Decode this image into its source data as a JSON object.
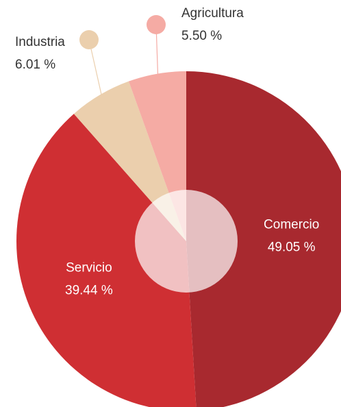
{
  "chart_data": {
    "type": "pie",
    "categories": [
      "Comercio",
      "Servicio",
      "Industria",
      "Agricultura"
    ],
    "values": [
      49.05,
      39.44,
      6.01,
      5.5
    ],
    "value_labels": [
      "49.05 %",
      "39.44 %",
      "6.01 %",
      "5.50 %"
    ],
    "colors": [
      "#a8292f",
      "#cf2f33",
      "#ebcfad",
      "#f5aba4"
    ]
  }
}
